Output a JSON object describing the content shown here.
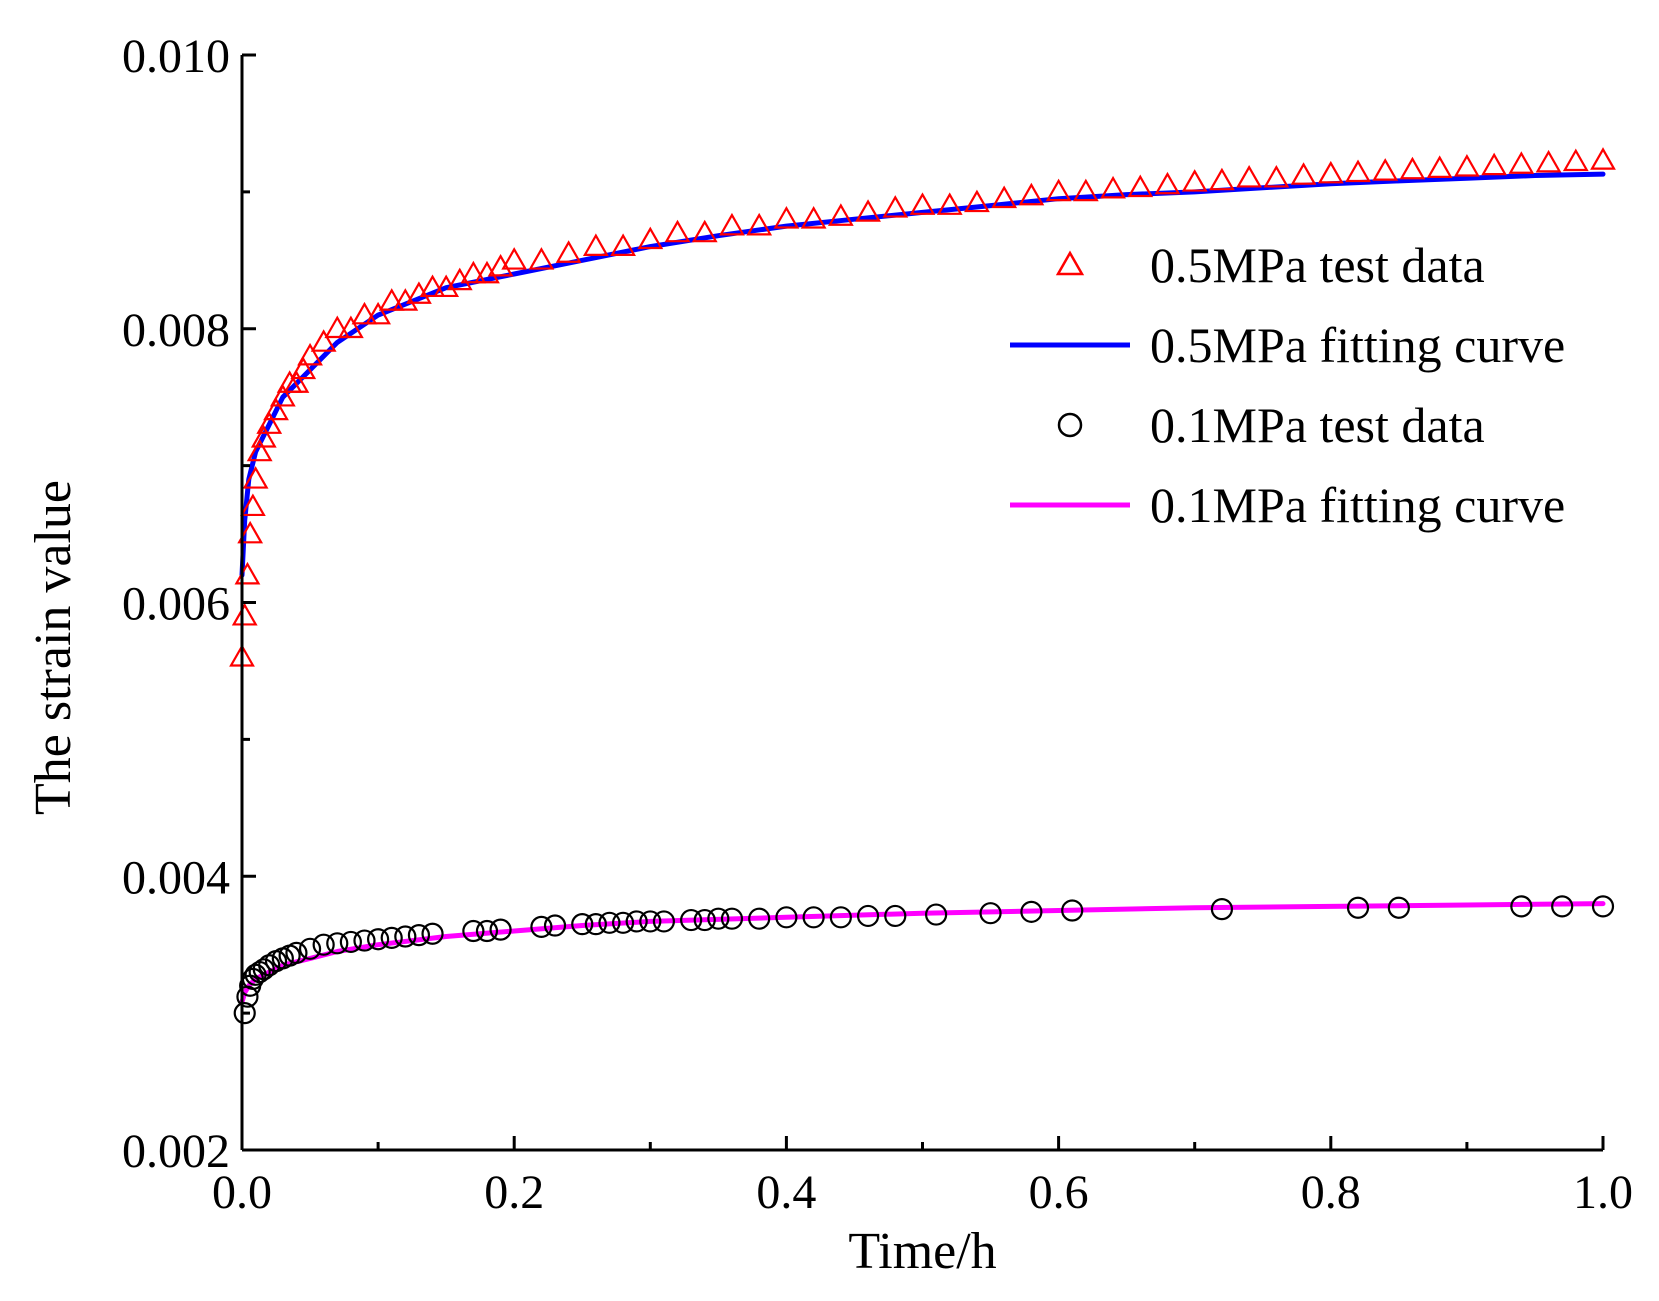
{
  "chart_data": {
    "type": "scatter",
    "title": "",
    "xlabel": "Time/h",
    "ylabel": "The strain value",
    "xlim": [
      0.0,
      1.0
    ],
    "ylim": [
      0.002,
      0.01
    ],
    "x_ticks": [
      "0.0",
      "0.2",
      "0.4",
      "0.6",
      "0.8",
      "1.0"
    ],
    "y_ticks": [
      "0.002",
      "0.004",
      "0.006",
      "0.008",
      "0.010"
    ],
    "legend_position": "right",
    "series": [
      {
        "name": "0.5MPa test data",
        "kind": "scatter",
        "marker": "triangle",
        "color": "#ff0000",
        "x": [
          0.0,
          0.002,
          0.004,
          0.006,
          0.008,
          0.01,
          0.013,
          0.016,
          0.02,
          0.025,
          0.03,
          0.035,
          0.04,
          0.045,
          0.05,
          0.06,
          0.07,
          0.08,
          0.09,
          0.1,
          0.11,
          0.12,
          0.13,
          0.14,
          0.15,
          0.16,
          0.17,
          0.18,
          0.19,
          0.2,
          0.22,
          0.24,
          0.26,
          0.28,
          0.3,
          0.32,
          0.34,
          0.36,
          0.38,
          0.4,
          0.42,
          0.44,
          0.46,
          0.48,
          0.5,
          0.52,
          0.54,
          0.56,
          0.58,
          0.6,
          0.62,
          0.64,
          0.66,
          0.68,
          0.7,
          0.72,
          0.74,
          0.76,
          0.78,
          0.8,
          0.82,
          0.84,
          0.86,
          0.88,
          0.9,
          0.92,
          0.94,
          0.96,
          0.98,
          1.0
        ],
        "y": [
          0.0056,
          0.0059,
          0.0062,
          0.0065,
          0.0067,
          0.0069,
          0.0071,
          0.0072,
          0.0073,
          0.0074,
          0.0075,
          0.0076,
          0.0076,
          0.0077,
          0.0078,
          0.0079,
          0.008,
          0.008,
          0.0081,
          0.0081,
          0.0082,
          0.0082,
          0.00825,
          0.0083,
          0.0083,
          0.00835,
          0.0084,
          0.0084,
          0.00845,
          0.0085,
          0.0085,
          0.00855,
          0.0086,
          0.0086,
          0.00865,
          0.0087,
          0.0087,
          0.00875,
          0.00875,
          0.0088,
          0.0088,
          0.00882,
          0.00885,
          0.00888,
          0.0089,
          0.0089,
          0.00892,
          0.00895,
          0.00897,
          0.009,
          0.009,
          0.00902,
          0.00903,
          0.00905,
          0.00907,
          0.00908,
          0.0091,
          0.0091,
          0.00912,
          0.00913,
          0.00914,
          0.00915,
          0.00916,
          0.00917,
          0.00918,
          0.00919,
          0.0092,
          0.00921,
          0.00922,
          0.00923
        ]
      },
      {
        "name": "0.5MPa fitting curve",
        "kind": "line",
        "color": "#0000ff",
        "x": [
          0.0,
          0.002,
          0.005,
          0.01,
          0.02,
          0.03,
          0.05,
          0.07,
          0.1,
          0.15,
          0.2,
          0.25,
          0.3,
          0.35,
          0.4,
          0.45,
          0.5,
          0.55,
          0.6,
          0.65,
          0.7,
          0.75,
          0.8,
          0.85,
          0.9,
          0.95,
          1.0
        ],
        "y": [
          0.0062,
          0.0066,
          0.0069,
          0.0071,
          0.0073,
          0.0075,
          0.0077,
          0.0079,
          0.0081,
          0.0083,
          0.0084,
          0.0085,
          0.0086,
          0.00868,
          0.00875,
          0.0088,
          0.00885,
          0.0089,
          0.00895,
          0.00898,
          0.009,
          0.00903,
          0.00906,
          0.00908,
          0.0091,
          0.00912,
          0.00913
        ]
      },
      {
        "name": "0.1MPa test data",
        "kind": "scatter",
        "marker": "circle",
        "color": "#000000",
        "x": [
          0.002,
          0.004,
          0.006,
          0.008,
          0.01,
          0.013,
          0.016,
          0.02,
          0.025,
          0.03,
          0.035,
          0.04,
          0.05,
          0.06,
          0.07,
          0.08,
          0.09,
          0.1,
          0.11,
          0.12,
          0.13,
          0.14,
          0.17,
          0.18,
          0.19,
          0.22,
          0.23,
          0.25,
          0.26,
          0.27,
          0.28,
          0.29,
          0.3,
          0.31,
          0.33,
          0.34,
          0.35,
          0.36,
          0.38,
          0.4,
          0.42,
          0.44,
          0.46,
          0.48,
          0.51,
          0.55,
          0.58,
          0.61,
          0.72,
          0.82,
          0.85,
          0.94,
          0.97,
          1.0
        ],
        "y": [
          0.003,
          0.00312,
          0.0032,
          0.00325,
          0.00328,
          0.0033,
          0.00332,
          0.00335,
          0.00338,
          0.0034,
          0.00342,
          0.00344,
          0.00347,
          0.0035,
          0.00351,
          0.00352,
          0.00353,
          0.00354,
          0.00355,
          0.00356,
          0.00357,
          0.00358,
          0.0036,
          0.0036,
          0.00361,
          0.00363,
          0.00364,
          0.00365,
          0.00365,
          0.00366,
          0.00366,
          0.00367,
          0.00367,
          0.00367,
          0.00368,
          0.00368,
          0.00369,
          0.00369,
          0.00369,
          0.0037,
          0.0037,
          0.0037,
          0.00371,
          0.00371,
          0.00372,
          0.00373,
          0.00374,
          0.00375,
          0.00376,
          0.00377,
          0.00377,
          0.00378,
          0.00378,
          0.00378
        ]
      },
      {
        "name": "0.1MPa fitting curve",
        "kind": "line",
        "color": "#ff00ff",
        "x": [
          0.0,
          0.002,
          0.005,
          0.01,
          0.02,
          0.03,
          0.05,
          0.07,
          0.1,
          0.15,
          0.2,
          0.25,
          0.3,
          0.4,
          0.5,
          0.6,
          0.7,
          0.8,
          0.9,
          1.0
        ],
        "y": [
          0.00308,
          0.00315,
          0.0032,
          0.00325,
          0.0033,
          0.00335,
          0.0034,
          0.00345,
          0.0035,
          0.00356,
          0.0036,
          0.00364,
          0.00367,
          0.0037,
          0.00373,
          0.00375,
          0.00377,
          0.00378,
          0.00379,
          0.0038
        ]
      }
    ]
  }
}
